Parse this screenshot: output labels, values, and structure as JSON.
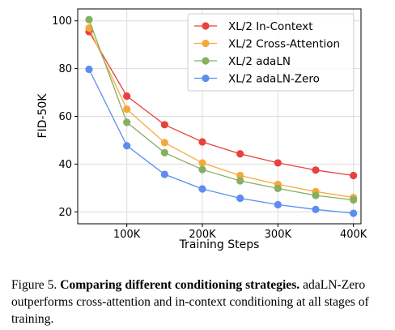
{
  "chart_data": {
    "type": "line",
    "xlabel": "Training Steps",
    "ylabel": "FID-50K",
    "x": [
      50000,
      100000,
      150000,
      200000,
      250000,
      300000,
      350000,
      400000
    ],
    "xticks": [
      100000,
      200000,
      300000,
      400000
    ],
    "xtick_labels": [
      "100K",
      "200K",
      "300K",
      "400K"
    ],
    "xlim": [
      35000,
      410000
    ],
    "yticks": [
      20,
      40,
      60,
      80,
      100
    ],
    "ytick_labels": [
      "20",
      "40",
      "60",
      "80",
      "100"
    ],
    "ylim": [
      15,
      105
    ],
    "grid": true,
    "legend_position": "top-right",
    "series": [
      {
        "name": "XL/2 In-Context",
        "color": "#e8423e",
        "values": [
          95.5,
          68.5,
          56.5,
          49.3,
          44.3,
          40.5,
          37.5,
          35.2
        ]
      },
      {
        "name": "XL/2 Cross-Attention",
        "color": "#f5a93b",
        "values": [
          97.0,
          63.0,
          49.0,
          40.5,
          35.2,
          31.5,
          28.5,
          26.0
        ]
      },
      {
        "name": "XL/2 adaLN",
        "color": "#86af5e",
        "values": [
          100.5,
          57.5,
          44.8,
          37.7,
          33.0,
          29.8,
          26.9,
          25.0
        ]
      },
      {
        "name": "XL/2 adaLN-Zero",
        "color": "#5b8def",
        "values": [
          79.7,
          47.7,
          35.7,
          29.6,
          25.7,
          23.0,
          21.0,
          19.4
        ]
      }
    ]
  },
  "caption": {
    "label": "Figure 5.",
    "title": "Comparing different conditioning strategies.",
    "text": "adaLN-Zero outperforms cross-attention and in-context conditioning at all stages of training."
  }
}
